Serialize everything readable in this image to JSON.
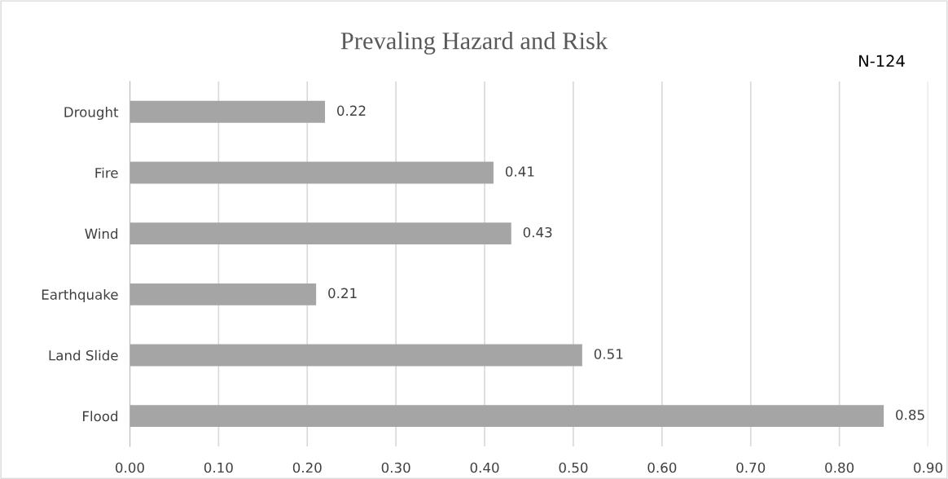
{
  "chart_data": {
    "type": "bar",
    "orientation": "horizontal",
    "title": "Prevaling Hazard and Risk",
    "annotations": [
      "N-124"
    ],
    "categories": [
      "Drought",
      "Fire",
      "Wind",
      "Earthquake",
      "Land Slide",
      "Flood"
    ],
    "values": [
      0.22,
      0.41,
      0.43,
      0.21,
      0.51,
      0.85
    ],
    "color": "#a5a5a5",
    "data_labels": true,
    "xlim": [
      0,
      0.9
    ],
    "xticks": [
      {
        "value": 0,
        "label": "0.00"
      },
      {
        "value": 0.1,
        "label": "0.10"
      },
      {
        "value": 0.2,
        "label": "0.20"
      },
      {
        "value": 0.3,
        "label": "0.30"
      },
      {
        "value": 0.4,
        "label": "0.40"
      },
      {
        "value": 0.5,
        "label": "0.50"
      },
      {
        "value": 0.6,
        "label": "0.60"
      },
      {
        "value": 0.7,
        "label": "0.70"
      },
      {
        "value": 0.8,
        "label": "0.80"
      },
      {
        "value": 0.9,
        "label": "0.90"
      }
    ],
    "grid": "x"
  }
}
